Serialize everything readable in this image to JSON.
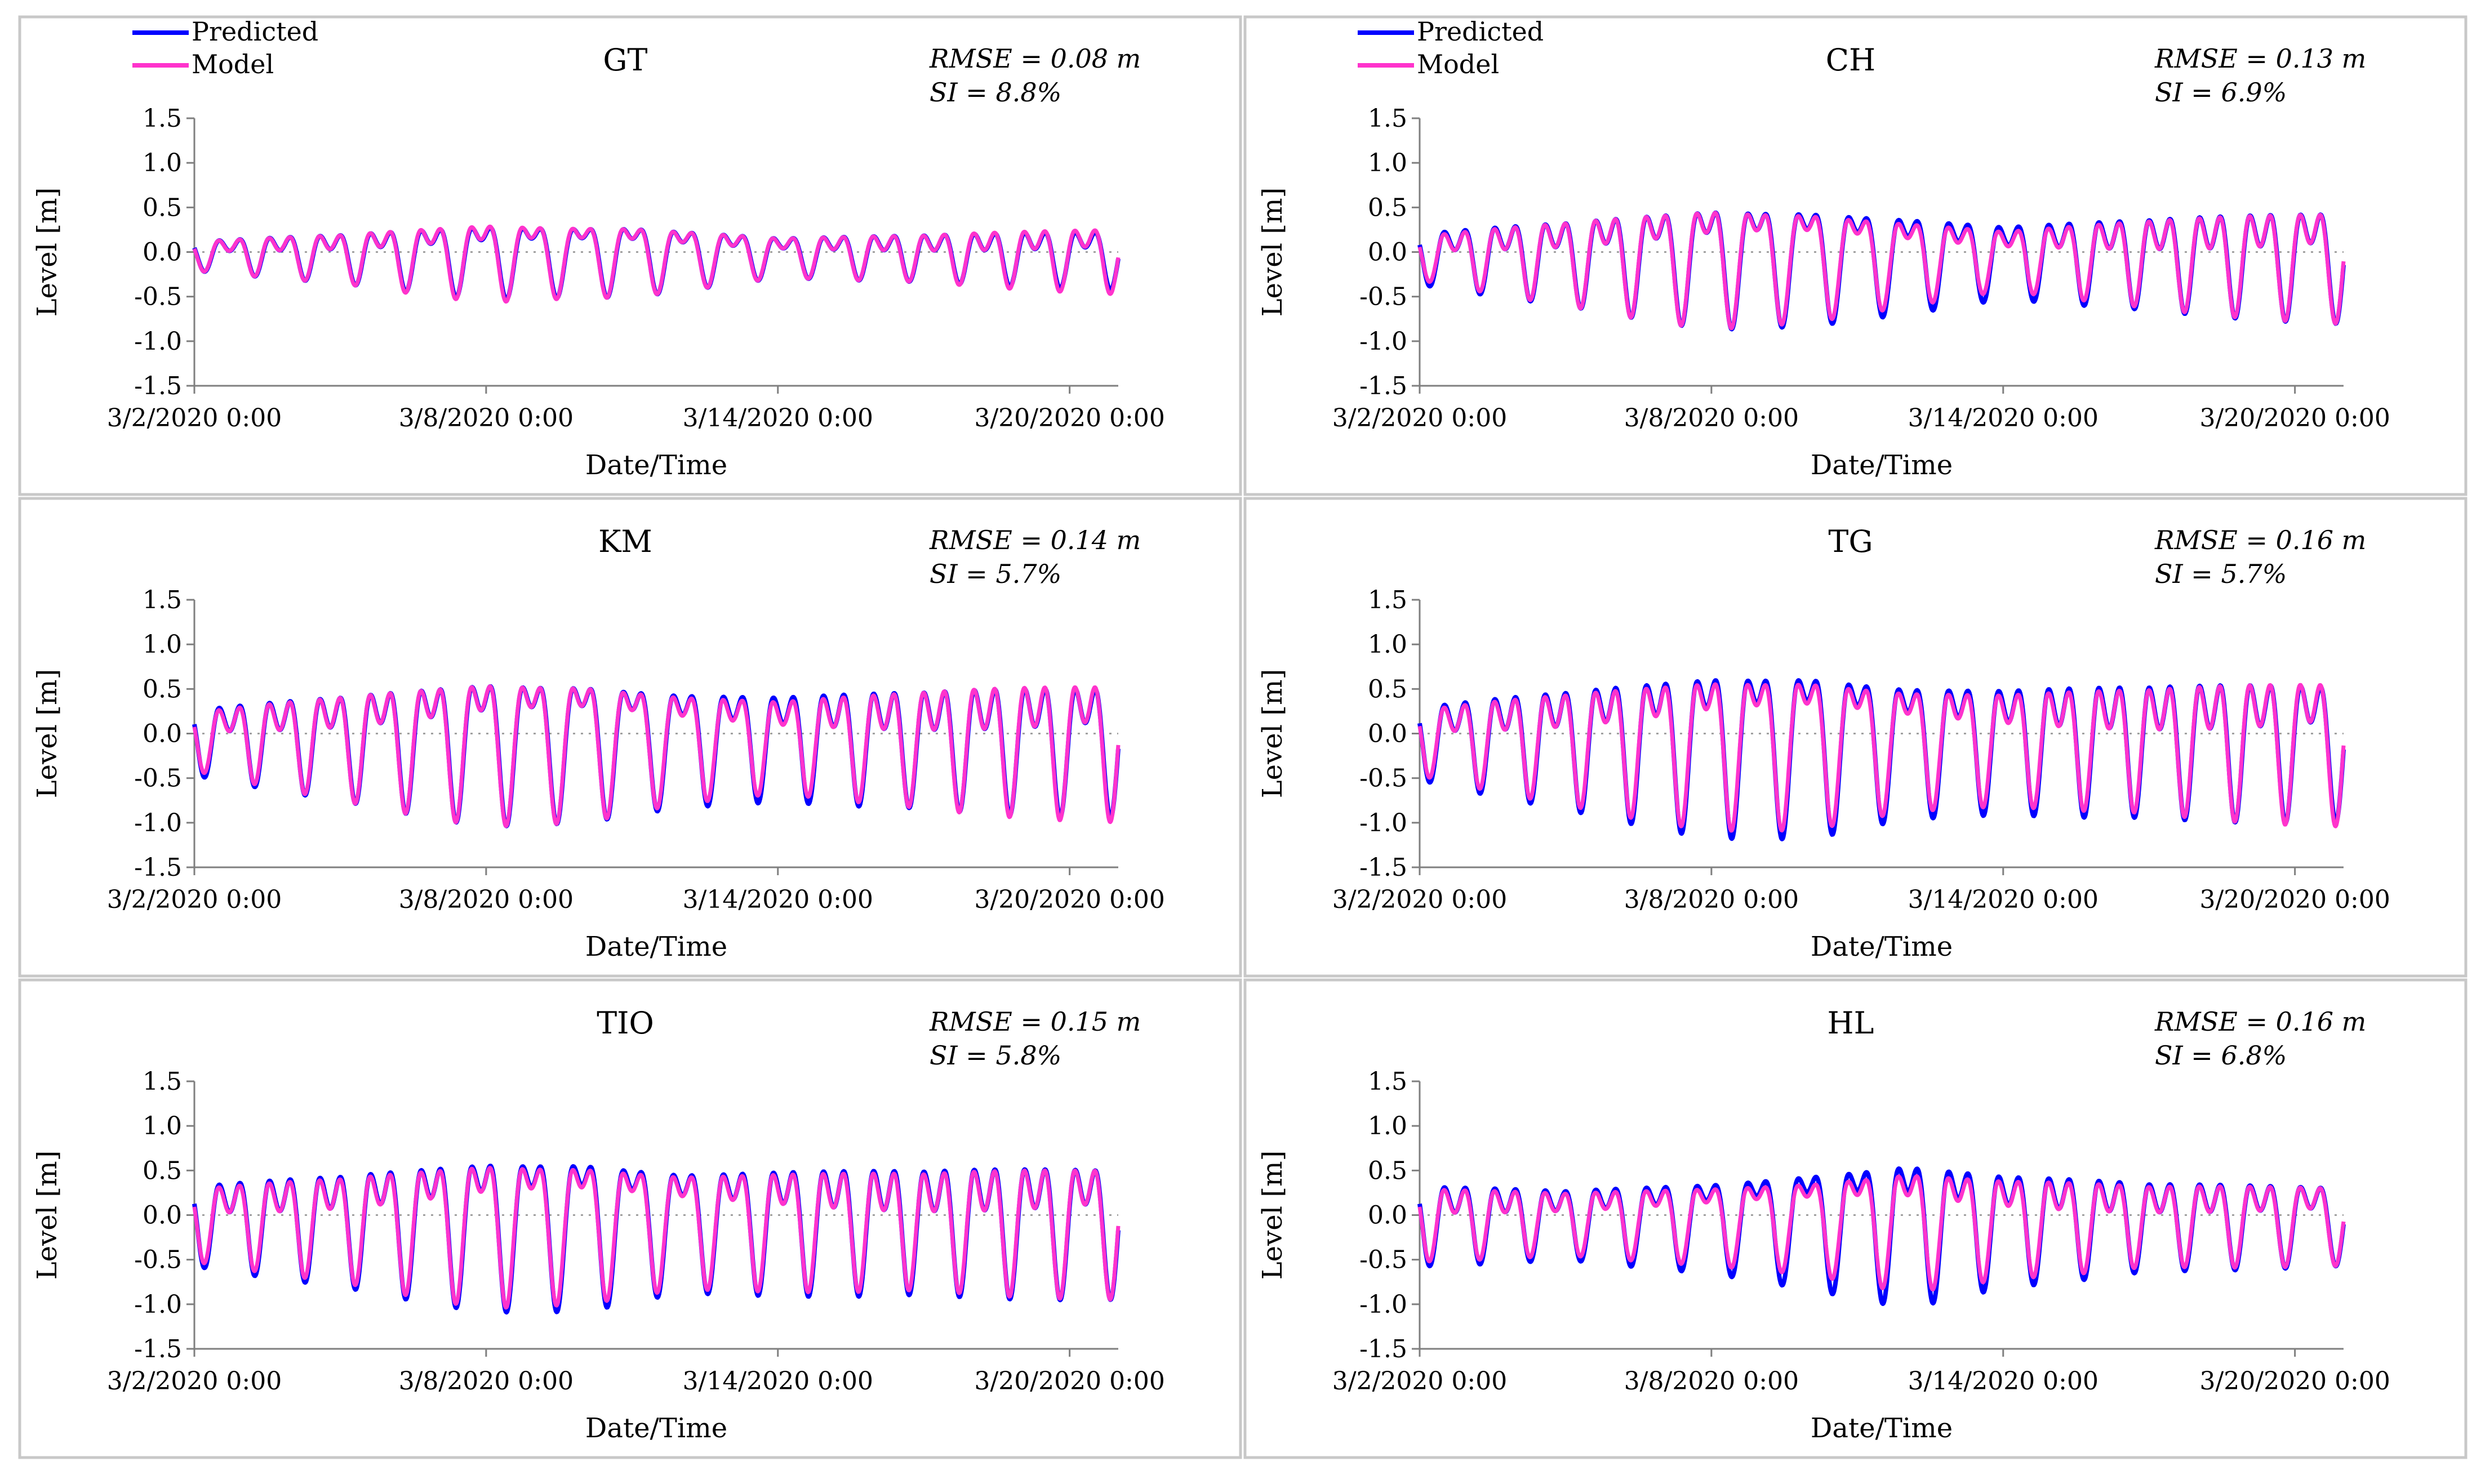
{
  "legend": [
    {
      "label": "Predicted",
      "color": "#0000ff"
    },
    {
      "label": "Model",
      "color": "#ff33cc"
    }
  ],
  "chart_data": [
    {
      "type": "line",
      "title": "GT",
      "xlabel": "Date/Time",
      "ylabel": "Level [m]",
      "ylim": [
        -1.5,
        1.5
      ],
      "yticks": [
        "1.5",
        "1.0",
        "0.5",
        "0.0",
        "-0.5",
        "-1.0",
        "-1.5"
      ],
      "xlim": [
        "3/2/2020 0:00",
        "3/21/2020 0:00"
      ],
      "xticks": [
        "3/2/2020 0:00",
        "3/8/2020 0:00",
        "3/14/2020 0:00",
        "3/20/2020 0:00"
      ],
      "rmse": "RMSE = 0.08 m",
      "si": "SI = 8.8%",
      "envelope": {
        "days": [
          0,
          3,
          6,
          9,
          12,
          15,
          19
        ],
        "predicted": [
          0.2,
          0.35,
          0.62,
          0.6,
          0.3,
          0.32,
          0.45
        ],
        "model": [
          0.2,
          0.35,
          0.65,
          0.6,
          0.3,
          0.32,
          0.5
        ]
      },
      "series": [
        {
          "name": "Predicted",
          "color": "#0000ff"
        },
        {
          "name": "Model",
          "color": "#ff33cc"
        }
      ]
    },
    {
      "type": "line",
      "title": "CH",
      "xlabel": "Date/Time",
      "ylabel": "Level [m]",
      "ylim": [
        -1.5,
        1.5
      ],
      "yticks": [
        "1.5",
        "1.0",
        "0.5",
        "0.0",
        "-0.5",
        "-1.0",
        "-1.5"
      ],
      "xlim": [
        "3/2/2020 0:00",
        "3/21/2020 0:00"
      ],
      "xticks": [
        "3/2/2020 0:00",
        "3/8/2020 0:00",
        "3/14/2020 0:00",
        "3/20/2020 0:00"
      ],
      "rmse": "RMSE = 0.13 m",
      "si": "SI = 6.9%",
      "envelope": {
        "days": [
          0,
          3,
          6,
          8,
          10,
          12,
          15,
          19
        ],
        "predicted": [
          0.35,
          0.6,
          1.0,
          1.0,
          0.8,
          0.55,
          0.62,
          0.85
        ],
        "model": [
          0.3,
          0.6,
          1.0,
          0.95,
          0.7,
          0.45,
          0.6,
          0.85
        ]
      },
      "series": [
        {
          "name": "Predicted",
          "color": "#0000ff"
        },
        {
          "name": "Model",
          "color": "#ff33cc"
        }
      ]
    },
    {
      "type": "line",
      "title": "KM",
      "xlabel": "Date/Time",
      "ylabel": "Level [m]",
      "ylim": [
        -1.5,
        1.5
      ],
      "yticks": [
        "1.5",
        "1.0",
        "0.5",
        "0.0",
        "-0.5",
        "-1.0",
        "-1.5"
      ],
      "xlim": [
        "3/2/2020 0:00",
        "3/21/2020 0:00"
      ],
      "xticks": [
        "3/2/2020 0:00",
        "3/8/2020 0:00",
        "3/14/2020 0:00",
        "3/20/2020 0:00"
      ],
      "rmse": "RMSE = 0.14 m",
      "si": "SI = 5.7%",
      "envelope": {
        "days": [
          0,
          3,
          6,
          8,
          10,
          12,
          15,
          19
        ],
        "predicted": [
          0.45,
          0.75,
          1.2,
          1.2,
          0.95,
          0.8,
          0.8,
          1.0
        ],
        "model": [
          0.4,
          0.75,
          1.2,
          1.2,
          0.9,
          0.7,
          0.8,
          1.05
        ]
      },
      "series": [
        {
          "name": "Predicted",
          "color": "#0000ff"
        },
        {
          "name": "Model",
          "color": "#ff33cc"
        }
      ]
    },
    {
      "type": "line",
      "title": "TG",
      "xlabel": "Date/Time",
      "ylabel": "Level [m]",
      "ylim": [
        -1.5,
        1.5
      ],
      "yticks": [
        "1.5",
        "1.0",
        "0.5",
        "0.0",
        "-0.5",
        "-1.0",
        "-1.5"
      ],
      "xlim": [
        "3/2/2020 0:00",
        "3/21/2020 0:00"
      ],
      "xticks": [
        "3/2/2020 0:00",
        "3/8/2020 0:00",
        "3/14/2020 0:00",
        "3/20/2020 0:00"
      ],
      "rmse": "RMSE = 0.16 m",
      "si": "SI = 5.7%",
      "envelope": {
        "days": [
          0,
          3,
          6,
          8,
          10,
          12,
          15,
          19
        ],
        "predicted": [
          0.5,
          0.85,
          1.35,
          1.42,
          1.1,
          0.95,
          0.9,
          1.05
        ],
        "model": [
          0.45,
          0.8,
          1.25,
          1.3,
          1.0,
          0.85,
          0.85,
          1.1
        ]
      },
      "series": [
        {
          "name": "Predicted",
          "color": "#0000ff"
        },
        {
          "name": "Model",
          "color": "#ff33cc"
        }
      ]
    },
    {
      "type": "line",
      "title": "TIO",
      "xlabel": "Date/Time",
      "ylabel": "Level [m]",
      "ylim": [
        -1.5,
        1.5
      ],
      "yticks": [
        "1.5",
        "1.0",
        "0.5",
        "0.0",
        "-0.5",
        "-1.0",
        "-1.5"
      ],
      "xlim": [
        "3/2/2020 0:00",
        "3/21/2020 0:00"
      ],
      "xticks": [
        "3/2/2020 0:00",
        "3/8/2020 0:00",
        "3/14/2020 0:00",
        "3/20/2020 0:00"
      ],
      "rmse": "RMSE = 0.15 m",
      "si": "SI = 5.8%",
      "envelope": {
        "days": [
          0,
          3,
          6,
          8,
          10,
          12,
          15,
          19
        ],
        "predicted": [
          0.55,
          0.8,
          1.25,
          1.3,
          1.0,
          0.95,
          0.85,
          1.0
        ],
        "model": [
          0.5,
          0.75,
          1.2,
          1.2,
          0.95,
          0.9,
          0.8,
          1.0
        ]
      },
      "series": [
        {
          "name": "Predicted",
          "color": "#0000ff"
        },
        {
          "name": "Model",
          "color": "#ff33cc"
        }
      ]
    },
    {
      "type": "line",
      "title": "HL",
      "xlabel": "Date/Time",
      "ylabel": "Level [m]",
      "ylim": [
        -1.5,
        1.5
      ],
      "yticks": [
        "1.5",
        "1.0",
        "0.5",
        "0.0",
        "-0.5",
        "-1.0",
        "-1.5"
      ],
      "xlim": [
        "3/2/2020 0:00",
        "3/21/2020 0:00"
      ],
      "xticks": [
        "3/2/2020 0:00",
        "3/8/2020 0:00",
        "3/14/2020 0:00",
        "3/20/2020 0:00"
      ],
      "rmse": "RMSE = 0.16 m",
      "si": "SI = 6.8%",
      "envelope": {
        "days": [
          0,
          3,
          6,
          8,
          10,
          12,
          15,
          19
        ],
        "predicted": [
          0.55,
          0.5,
          0.75,
          1.0,
          1.2,
          0.85,
          0.6,
          0.6
        ],
        "model": [
          0.5,
          0.45,
          0.65,
          0.8,
          1.0,
          0.75,
          0.55,
          0.6
        ]
      },
      "series": [
        {
          "name": "Predicted",
          "color": "#0000ff"
        },
        {
          "name": "Model",
          "color": "#ff33cc"
        }
      ]
    }
  ]
}
